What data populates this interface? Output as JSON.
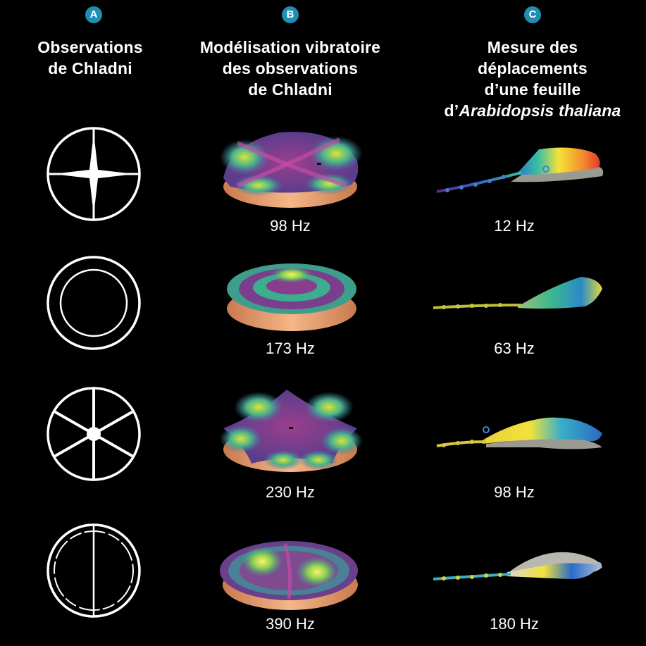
{
  "columns": [
    {
      "badge": "A",
      "title": "Observations\nde Chladni"
    },
    {
      "badge": "B",
      "title": "Modélisation vibratoire\ndes observations\nde Chladni"
    },
    {
      "badge": "C",
      "title_main": "Mesure des\ndéplacements\nd’une feuille\nd’",
      "title_italic": "Arabidopsis thaliana"
    }
  ],
  "model_frequencies": [
    "98 Hz",
    "173 Hz",
    "230 Hz",
    "390 Hz"
  ],
  "leaf_frequencies": [
    "12 Hz",
    "63 Hz",
    "98 Hz",
    "180 Hz"
  ],
  "colors": {
    "badge": "#1f8eb0",
    "plate_base": "#e59a68",
    "node_line": "#7a2a78",
    "antinode": "#f2ea3a",
    "mid": "#3cae8e"
  }
}
